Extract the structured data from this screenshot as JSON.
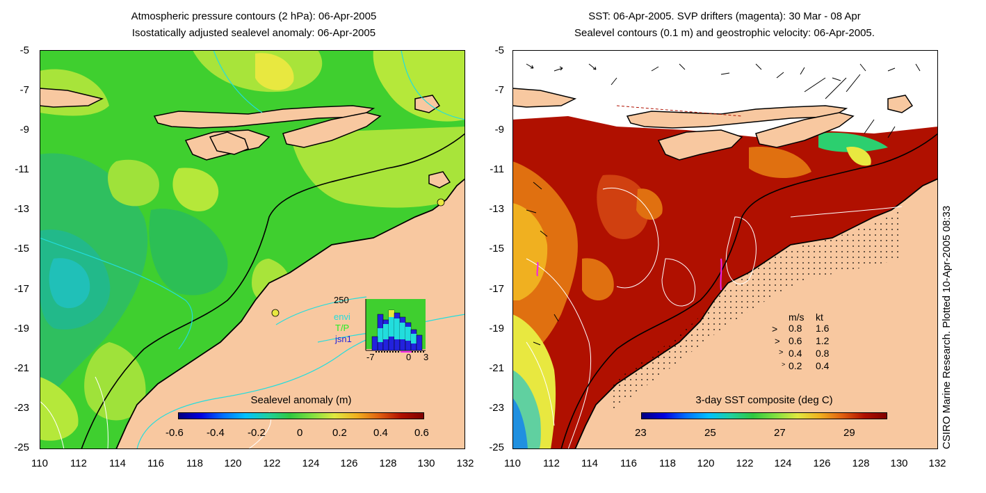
{
  "left_panel": {
    "title_line1": "Atmospheric pressure contours (2 hPa): 06-Apr-2005",
    "title_line2": "Isostatically adjusted sealevel anomaly: 06-Apr-2005",
    "colorbar_label": "Sealevel anomaly (m)",
    "colorbar_ticks": [
      "-0.6",
      "-0.4",
      "-0.2",
      "0",
      "0.2",
      "0.4",
      "0.6"
    ],
    "inset": {
      "ymax_label": "250",
      "legend": [
        {
          "label": "envi",
          "color": "#22dddd"
        },
        {
          "label": "T/P",
          "color": "#22ee22"
        },
        {
          "label": "jsn1",
          "color": "#2222dd"
        }
      ],
      "x_ticks": [
        "-7",
        "0",
        "3"
      ]
    }
  },
  "right_panel": {
    "title_line1": "SST: 06-Apr-2005. SVP drifters (magenta): 30 Mar - 08 Apr",
    "title_line2": "Sealevel contours (0.1 m) and geostrophic velocity: 06-Apr-2005.",
    "colorbar_label": "3-day SST composite (deg C)",
    "colorbar_ticks": [
      "23",
      "25",
      "27",
      "29"
    ],
    "velocity_key": {
      "header_ms": "m/s",
      "header_kt": "kt",
      "rows": [
        {
          "ms": "0.8",
          "kt": "1.6"
        },
        {
          "ms": "0.6",
          "kt": "1.2"
        },
        {
          "ms": "0.4",
          "kt": "0.8"
        },
        {
          "ms": "0.2",
          "kt": "0.4"
        }
      ]
    }
  },
  "axes": {
    "y_ticks": [
      "-5",
      "-7",
      "-9",
      "-11",
      "-13",
      "-15",
      "-17",
      "-19",
      "-21",
      "-23",
      "-25"
    ],
    "x_ticks": [
      "110",
      "112",
      "114",
      "116",
      "118",
      "120",
      "122",
      "124",
      "126",
      "128",
      "130",
      "132"
    ]
  },
  "side_note": "CSIRO Marine Research. Plotted 10-Apr-2005 08:33",
  "colors": {
    "land": "#f8c8a0",
    "sealevel_green": "#3fcf2f",
    "sst_red": "#b01000"
  }
}
